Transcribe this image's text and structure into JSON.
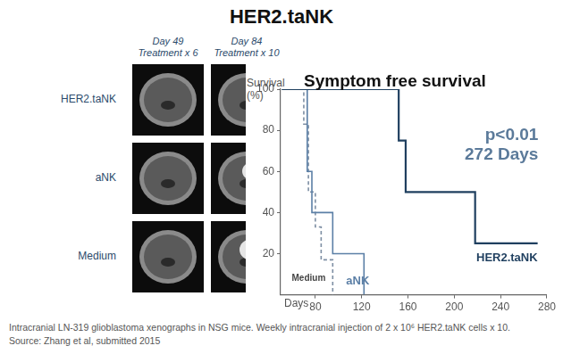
{
  "title": "HER2.taNK",
  "panels": {
    "column_headers": [
      [
        "Day 49",
        "Treatment x 6"
      ],
      [
        "Day 84",
        "Treatment x 10"
      ]
    ],
    "row_labels": [
      "HER2.taNK",
      "aNK",
      "Medium"
    ]
  },
  "chart_data": {
    "type": "line",
    "title": "Symptom free survival",
    "y_label": [
      "Survival",
      "(%)"
    ],
    "x_label": "Days",
    "annotations": [
      "p<0.01",
      "272 Days"
    ],
    "xlim": [
      50,
      280
    ],
    "xticks": [
      80,
      120,
      160,
      200,
      240,
      280
    ],
    "ylim": [
      0,
      100
    ],
    "yticks": [
      20,
      40,
      60,
      80,
      100
    ],
    "grid": false,
    "series": [
      {
        "name": "HER2.taNK",
        "color": "#1f3f5f",
        "line_style": "solid",
        "x": [
          51,
          152,
          152,
          158,
          158,
          218,
          218,
          272
        ],
        "values": [
          100,
          100,
          75,
          75,
          50,
          50,
          25,
          25
        ]
      },
      {
        "name": "aNK",
        "color": "#5b7fa6",
        "line_style": "solid",
        "x": [
          51,
          73,
          73,
          77,
          77,
          95,
          95,
          122,
          122
        ],
        "values": [
          100,
          100,
          60,
          60,
          40,
          40,
          20,
          20,
          0
        ]
      },
      {
        "name": "Medium",
        "color": "#7d8ea3",
        "line_style": "dashed",
        "x": [
          51,
          70,
          70,
          74,
          74,
          80,
          80,
          85,
          85,
          95,
          95
        ],
        "values": [
          100,
          100,
          83,
          83,
          50,
          50,
          33,
          33,
          17,
          17,
          0
        ]
      }
    ]
  },
  "caption": [
    "Intracranial LN-319 glioblastoma xenographs in NSG mice. Weekly intracranial injection of 2 x 10⁶ HER2.taNK cells x 10.",
    "Source: Zhang et al, submitted 2015"
  ]
}
